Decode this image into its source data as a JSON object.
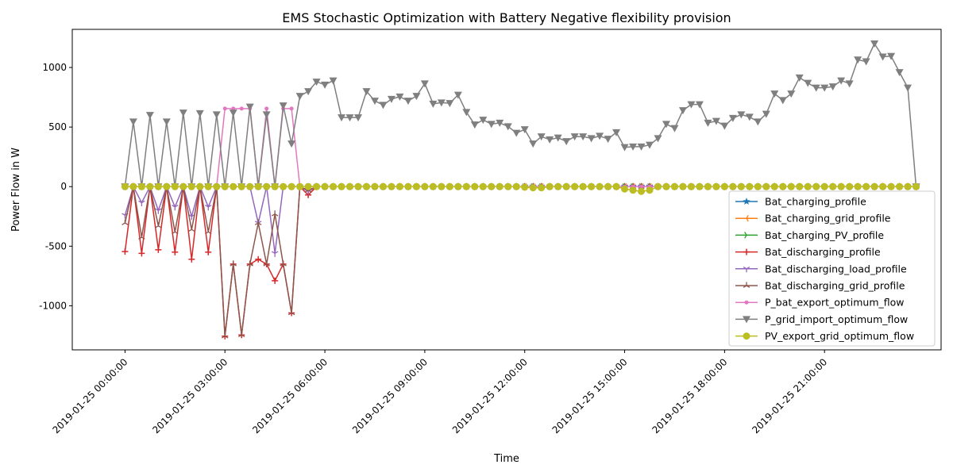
{
  "chart_data": {
    "type": "line",
    "title": "EMS Stochastic Optimization with Battery Negative flexibility provision",
    "xlabel": "Time",
    "ylabel": "Power Flow in W",
    "x_start": "2019-01-25 00:00:00",
    "x_step_minutes": 15,
    "x_count": 96,
    "xlim": [
      "2019-01-24 22:25",
      "2019-01-26 00:30"
    ],
    "ylim": [
      -1370,
      1320
    ],
    "xticks": [
      "2019-01-25 00:00:00",
      "2019-01-25 03:00:00",
      "2019-01-25 06:00:00",
      "2019-01-25 09:00:00",
      "2019-01-25 12:00:00",
      "2019-01-25 15:00:00",
      "2019-01-25 18:00:00",
      "2019-01-25 21:00:00"
    ],
    "yticks": [
      -1000,
      -500,
      0,
      500,
      1000
    ],
    "grid": false,
    "legend_position": "lower-right",
    "series": [
      {
        "name": "Bat_charging_profile",
        "color": "#1f77b4",
        "marker": "star",
        "values": [
          0,
          0,
          0,
          0,
          0,
          0,
          0,
          0,
          0,
          0,
          0,
          0,
          0,
          0,
          0,
          0,
          0,
          0,
          0,
          0,
          0,
          0,
          0,
          0,
          0,
          0,
          0,
          0,
          0,
          0,
          0,
          0,
          0,
          0,
          0,
          0,
          0,
          0,
          0,
          0,
          0,
          0,
          0,
          0,
          0,
          0,
          0,
          0,
          0,
          0,
          0,
          0,
          0,
          0,
          0,
          0,
          0,
          0,
          0,
          0,
          0,
          0,
          0,
          0,
          0,
          0,
          0,
          0,
          0,
          0,
          0,
          0,
          0,
          0,
          0,
          0,
          0,
          0,
          0,
          0,
          0,
          0,
          0,
          0,
          0,
          0,
          0,
          0,
          0,
          0,
          0,
          0,
          0,
          0,
          0,
          0
        ]
      },
      {
        "name": "Bat_charging_grid_profile",
        "color": "#ff7f0e",
        "marker": "tri_left",
        "values": [
          0,
          0,
          0,
          0,
          0,
          0,
          0,
          0,
          0,
          0,
          0,
          0,
          0,
          0,
          0,
          0,
          0,
          0,
          0,
          0,
          0,
          0,
          0,
          0,
          0,
          0,
          0,
          0,
          0,
          0,
          0,
          0,
          0,
          0,
          0,
          0,
          0,
          0,
          0,
          0,
          0,
          0,
          0,
          0,
          0,
          0,
          0,
          0,
          0,
          0,
          0,
          0,
          0,
          0,
          0,
          0,
          0,
          0,
          0,
          0,
          0,
          0,
          0,
          0,
          0,
          0,
          0,
          0,
          0,
          0,
          0,
          0,
          0,
          0,
          0,
          0,
          0,
          0,
          0,
          0,
          0,
          0,
          0,
          0,
          0,
          0,
          0,
          0,
          0,
          0,
          0,
          0,
          0,
          0,
          0,
          0
        ]
      },
      {
        "name": "Bat_charging_PV_profile",
        "color": "#2ca02c",
        "marker": "tri_right",
        "values": [
          0,
          0,
          0,
          0,
          0,
          0,
          0,
          0,
          0,
          0,
          0,
          0,
          0,
          0,
          0,
          0,
          0,
          0,
          0,
          0,
          0,
          0,
          0,
          0,
          0,
          0,
          0,
          0,
          0,
          0,
          0,
          0,
          0,
          0,
          0,
          0,
          0,
          0,
          0,
          0,
          0,
          0,
          0,
          0,
          0,
          0,
          0,
          0,
          0,
          0,
          0,
          0,
          0,
          0,
          0,
          0,
          0,
          0,
          0,
          0,
          0,
          0,
          0,
          0,
          0,
          0,
          0,
          0,
          0,
          0,
          0,
          0,
          0,
          0,
          0,
          0,
          0,
          0,
          0,
          0,
          0,
          0,
          0,
          0,
          0,
          0,
          0,
          0,
          0,
          0,
          0,
          0,
          0,
          0,
          0,
          0
        ]
      },
      {
        "name": "Bat_discharging_profile",
        "color": "#d62728",
        "marker": "plus",
        "values": [
          -545,
          0,
          -560,
          0,
          -530,
          0,
          -550,
          0,
          -610,
          0,
          -550,
          0,
          -1255,
          -650,
          -1245,
          -650,
          -610,
          -650,
          -790,
          -650,
          -1060,
          0,
          -70,
          0,
          0,
          0,
          0,
          0,
          0,
          0,
          0,
          0,
          0,
          0,
          0,
          0,
          0,
          0,
          0,
          0,
          0,
          0,
          0,
          0,
          0,
          0,
          0,
          0,
          0,
          0,
          0,
          0,
          0,
          0,
          0,
          0,
          0,
          0,
          0,
          0,
          0,
          0,
          0,
          0,
          0,
          0,
          0,
          0,
          0,
          0,
          0,
          0,
          0,
          0,
          0,
          0,
          0,
          0,
          0,
          0,
          0,
          0,
          0,
          0,
          0,
          0,
          0,
          0,
          0,
          0,
          0,
          0,
          0,
          0,
          0,
          0
        ]
      },
      {
        "name": "Bat_discharging_load_profile",
        "color": "#9467bd",
        "marker": "tri_down",
        "values": [
          -240,
          0,
          -135,
          0,
          -200,
          0,
          -170,
          0,
          -250,
          0,
          -170,
          0,
          0,
          0,
          0,
          0,
          -305,
          0,
          -560,
          0,
          0,
          0,
          -40,
          0,
          0,
          0,
          0,
          0,
          0,
          0,
          0,
          0,
          0,
          0,
          0,
          0,
          0,
          0,
          0,
          0,
          0,
          0,
          0,
          0,
          0,
          0,
          0,
          0,
          0,
          0,
          0,
          0,
          0,
          0,
          0,
          0,
          0,
          0,
          0,
          0,
          0,
          0,
          0,
          0,
          0,
          0,
          0,
          0,
          0,
          0,
          0,
          0,
          0,
          0,
          0,
          0,
          0,
          0,
          0,
          0,
          0,
          0,
          0,
          0,
          0,
          0,
          0,
          0,
          0,
          0,
          0,
          0,
          0,
          0,
          0,
          0
        ]
      },
      {
        "name": "Bat_discharging_grid_profile",
        "color": "#8c564b",
        "marker": "tri_up",
        "values": [
          -305,
          0,
          -425,
          0,
          -330,
          0,
          -380,
          0,
          -360,
          0,
          -380,
          0,
          -1255,
          -650,
          -1245,
          -650,
          -305,
          -650,
          -230,
          -650,
          -1060,
          0,
          -30,
          0,
          0,
          0,
          0,
          0,
          0,
          0,
          0,
          0,
          0,
          0,
          0,
          0,
          0,
          0,
          0,
          0,
          0,
          0,
          0,
          0,
          0,
          0,
          0,
          0,
          0,
          0,
          0,
          0,
          0,
          0,
          0,
          0,
          0,
          0,
          0,
          0,
          0,
          0,
          0,
          0,
          0,
          0,
          0,
          0,
          0,
          0,
          0,
          0,
          0,
          0,
          0,
          0,
          0,
          0,
          0,
          0,
          0,
          0,
          0,
          0,
          0,
          0,
          0,
          0,
          0,
          0,
          0,
          0,
          0,
          0,
          0,
          0
        ]
      },
      {
        "name": "P_bat_export_optimum_flow",
        "color": "#e377c2",
        "marker": "point",
        "values": [
          0,
          0,
          0,
          0,
          0,
          0,
          0,
          0,
          0,
          0,
          0,
          0,
          655,
          655,
          655,
          655,
          0,
          655,
          0,
          655,
          655,
          0,
          0,
          0,
          0,
          0,
          0,
          0,
          0,
          0,
          0,
          0,
          0,
          0,
          0,
          0,
          0,
          0,
          0,
          0,
          0,
          0,
          0,
          0,
          0,
          0,
          0,
          0,
          0,
          0,
          0,
          0,
          0,
          0,
          0,
          0,
          0,
          0,
          0,
          0,
          0,
          0,
          0,
          0,
          0,
          0,
          0,
          0,
          0,
          0,
          0,
          0,
          0,
          0,
          0,
          0,
          0,
          0,
          0,
          0,
          0,
          0,
          0,
          0,
          0,
          0,
          0,
          0,
          0,
          0,
          0,
          0,
          0,
          0,
          0,
          0
        ]
      },
      {
        "name": "P_grid_import_optimum_flow",
        "color": "#7f7f7f",
        "marker": "triangle_down",
        "values": [
          0,
          545,
          0,
          600,
          0,
          545,
          0,
          620,
          0,
          615,
          0,
          605,
          0,
          620,
          0,
          670,
          0,
          605,
          0,
          680,
          360,
          760,
          800,
          880,
          855,
          890,
          580,
          580,
          580,
          800,
          720,
          685,
          735,
          755,
          720,
          760,
          865,
          695,
          705,
          700,
          770,
          625,
          520,
          560,
          525,
          535,
          505,
          450,
          480,
          360,
          420,
          395,
          410,
          380,
          420,
          420,
          405,
          425,
          400,
          455,
          330,
          335,
          335,
          350,
          405,
          525,
          490,
          640,
          690,
          690,
          535,
          550,
          510,
          575,
          605,
          585,
          545,
          610,
          780,
          725,
          780,
          915,
          870,
          830,
          830,
          840,
          890,
          865,
          1065,
          1050,
          1200,
          1090,
          1095,
          960,
          830,
          0
        ]
      },
      {
        "name": "PV_export_grid_optimum_flow",
        "color": "#bcbd22",
        "marker": "circle",
        "values": [
          0,
          0,
          0,
          0,
          0,
          0,
          0,
          0,
          0,
          0,
          0,
          0,
          0,
          0,
          0,
          0,
          0,
          0,
          0,
          0,
          0,
          0,
          0,
          0,
          0,
          0,
          0,
          0,
          0,
          0,
          0,
          0,
          0,
          0,
          0,
          0,
          0,
          0,
          0,
          0,
          0,
          0,
          0,
          0,
          0,
          0,
          0,
          0,
          -5,
          -10,
          -10,
          0,
          0,
          0,
          0,
          0,
          0,
          0,
          0,
          0,
          -20,
          -30,
          -40,
          -30,
          0,
          0,
          0,
          0,
          0,
          0,
          0,
          0,
          0,
          0,
          0,
          0,
          0,
          0,
          0,
          0,
          0,
          0,
          0,
          0,
          0,
          0,
          0,
          0,
          0,
          0,
          0,
          0,
          0,
          0,
          0,
          0
        ]
      }
    ]
  }
}
